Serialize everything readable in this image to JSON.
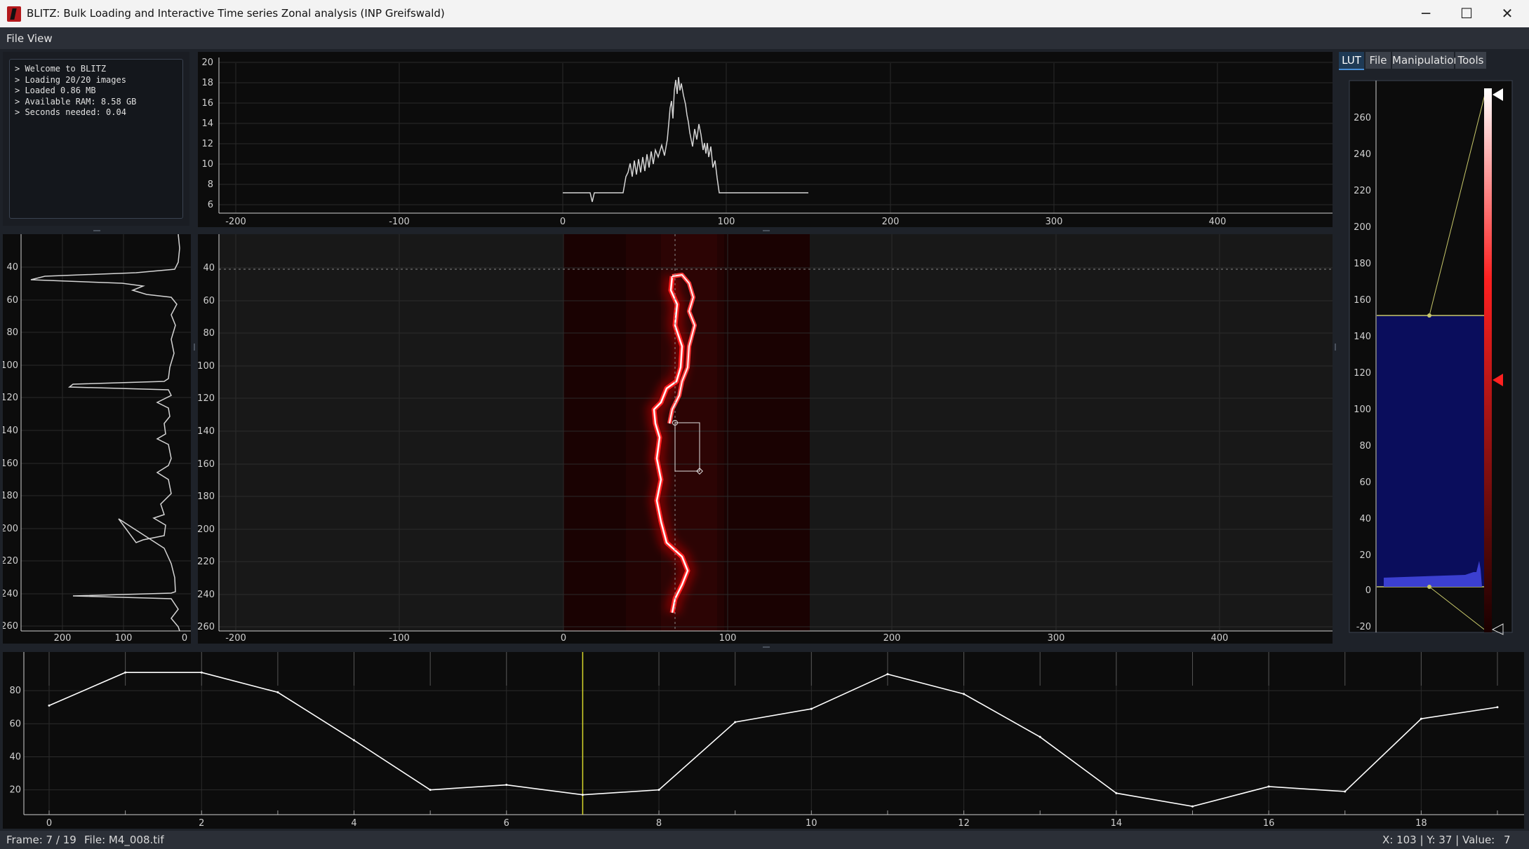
{
  "window": {
    "title": "BLITZ: Bulk Loading and Interactive Time series Zonal analysis (INP Greifswald)",
    "minimize": "─",
    "maximize": "☐",
    "close": "✕"
  },
  "menu": {
    "file": "File",
    "view": "View"
  },
  "console": {
    "lines": [
      "> Welcome to BLITZ",
      "> Loading 20/20 images",
      "> Loaded 0.86 MB",
      "> Available RAM: 8.58 GB",
      "> Seconds needed: 0.04"
    ]
  },
  "tabs": [
    "LUT",
    "File",
    "Manipulation",
    "Tools"
  ],
  "top_profile": {
    "x_ticks": [
      "-200",
      "-100",
      "0",
      "100",
      "200",
      "300",
      "400"
    ],
    "y_ticks": [
      "6",
      "8",
      "10",
      "12",
      "14",
      "16",
      "18",
      "20"
    ]
  },
  "left_profile": {
    "y_ticks": [
      "40",
      "60",
      "80",
      "100",
      "120",
      "140",
      "160",
      "180",
      "200",
      "220",
      "240",
      "260"
    ],
    "x_ticks": [
      "200",
      "100",
      "0"
    ]
  },
  "image_view": {
    "x_ticks": [
      "-200",
      "-100",
      "0",
      "100",
      "200",
      "300",
      "400"
    ],
    "y_ticks": [
      "40",
      "60",
      "80",
      "100",
      "120",
      "140",
      "160",
      "180",
      "200",
      "220",
      "240",
      "260"
    ]
  },
  "lut": {
    "y_ticks": [
      "260",
      "240",
      "220",
      "200",
      "180",
      "160",
      "140",
      "120",
      "100",
      "80",
      "60",
      "40",
      "20",
      "0",
      "-20"
    ]
  },
  "chart_data": {
    "type": "line",
    "x": [
      0,
      1,
      2,
      3,
      4,
      5,
      6,
      7,
      8,
      9,
      10,
      11,
      12,
      13,
      14,
      15,
      16,
      17,
      18,
      19
    ],
    "values": [
      71,
      91,
      91,
      79,
      50,
      20,
      23,
      17,
      20,
      61,
      69,
      90,
      78,
      52,
      18,
      10,
      22,
      19,
      63,
      70
    ],
    "x_ticks": [
      "0",
      "2",
      "4",
      "6",
      "8",
      "10",
      "12",
      "14",
      "16",
      "18"
    ],
    "y_ticks": [
      "20",
      "40",
      "60",
      "80"
    ],
    "xlim": [
      0,
      19
    ],
    "ylim": [
      5,
      100
    ],
    "current_frame": 7,
    "current_frame_color": "#d8d82a",
    "line_color": "#ffffff"
  },
  "status": {
    "frame": "Frame: 7 / 19",
    "file": "File: M4_008.tif",
    "coords": "X: 103 | Y: 37 | Value:",
    "value": "7"
  },
  "colors": {
    "background": "#1e2229",
    "plot_bg": "#0c0c0c",
    "signal": "#ff2a2a",
    "lut_histogram": "#0a0d5c",
    "accent": "#4a8fd8"
  }
}
